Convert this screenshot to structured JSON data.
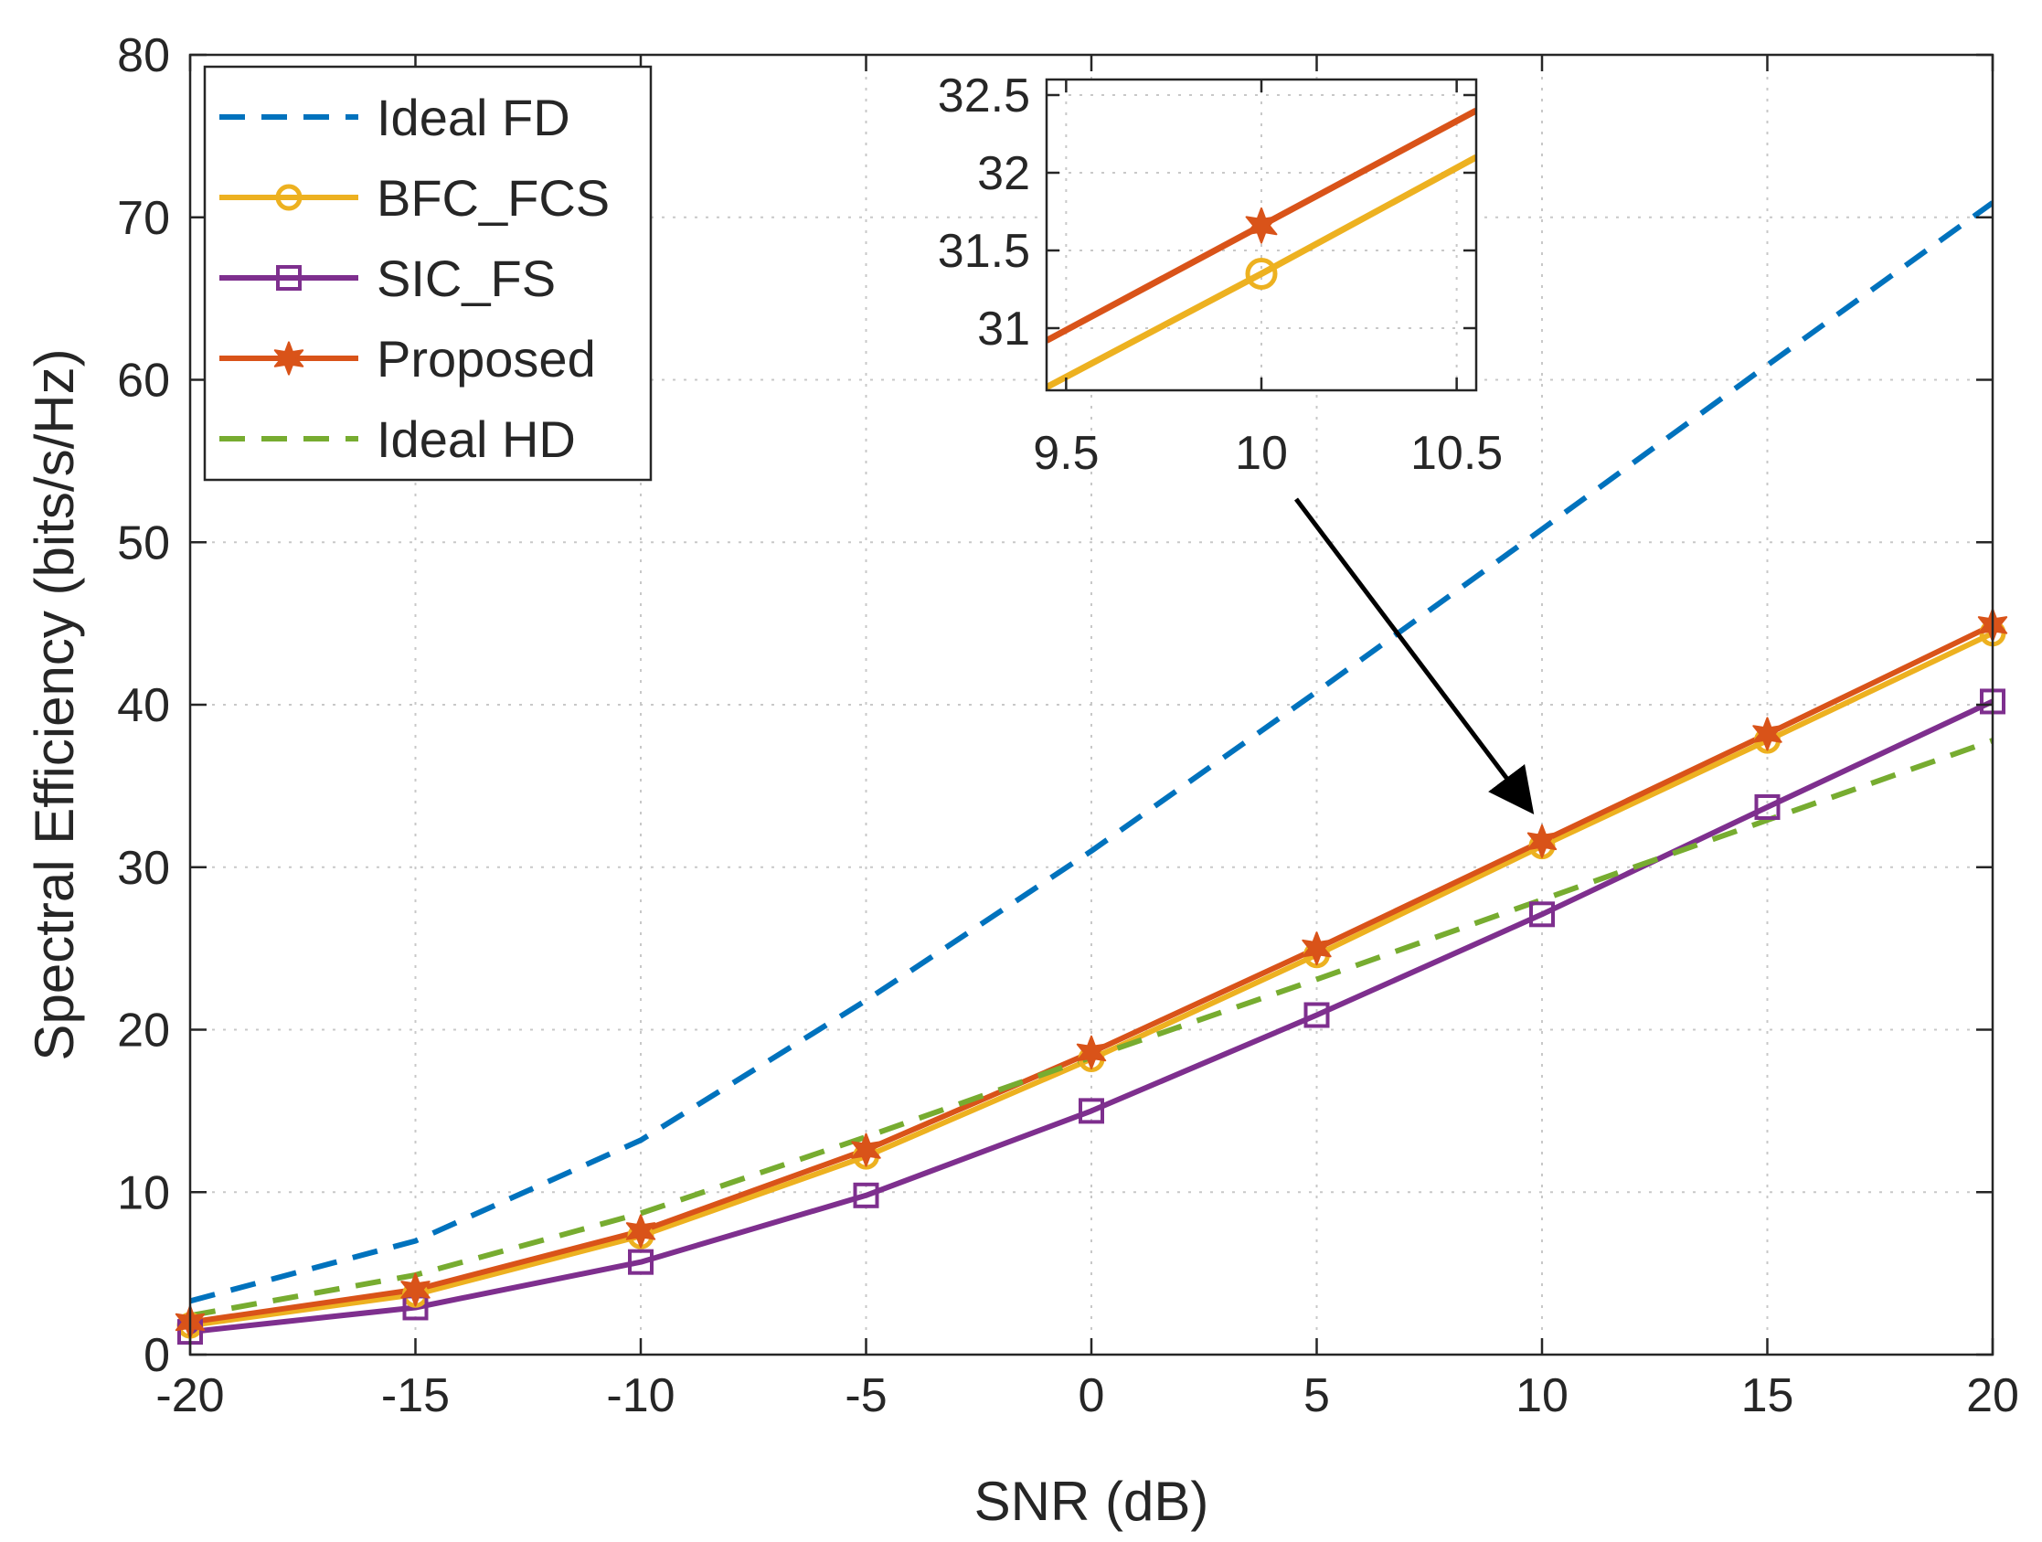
{
  "chart_data": {
    "type": "line",
    "title": "",
    "xlabel": "SNR (dB)",
    "ylabel": "Spectral Efficiency (bits/s/Hz)",
    "xlim": [
      -20,
      20
    ],
    "ylim": [
      0,
      80
    ],
    "x_ticks": [
      -20,
      -15,
      -10,
      -5,
      0,
      5,
      10,
      15,
      20
    ],
    "x_tick_labels": [
      "-20",
      "-15",
      "-10",
      "-5",
      "0",
      "5",
      "10",
      "15",
      "20"
    ],
    "y_ticks": [
      0,
      10,
      20,
      30,
      40,
      50,
      60,
      70,
      80
    ],
    "y_tick_labels": [
      "0",
      "10",
      "20",
      "30",
      "40",
      "50",
      "60",
      "70",
      "80"
    ],
    "grid": true,
    "legend_position": "top-left",
    "x": [
      -20,
      -15,
      -10,
      -5,
      0,
      5,
      10,
      15,
      20
    ],
    "series": [
      {
        "name": "Ideal FD",
        "color": "#0072BD",
        "style": "dashed",
        "marker": "none",
        "values": [
          3.3,
          7.0,
          13.2,
          21.8,
          31.0,
          40.8,
          50.8,
          60.9,
          70.9
        ]
      },
      {
        "name": "BFC_FCS",
        "color": "#EDB120",
        "style": "solid",
        "marker": "circle",
        "values": [
          1.8,
          3.7,
          7.3,
          12.2,
          18.2,
          24.6,
          31.3,
          37.8,
          44.4
        ]
      },
      {
        "name": "SIC_FS",
        "color": "#7E2F8E",
        "style": "solid",
        "marker": "square",
        "values": [
          1.4,
          2.9,
          5.7,
          9.8,
          15.0,
          20.9,
          27.1,
          33.7,
          40.2
        ]
      },
      {
        "name": "Proposed",
        "color": "#D95319",
        "style": "solid",
        "marker": "star",
        "values": [
          2.0,
          4.0,
          7.6,
          12.6,
          18.6,
          25.0,
          31.6,
          38.2,
          44.9
        ]
      },
      {
        "name": "Ideal HD",
        "color": "#77AC30",
        "style": "dashed",
        "marker": "none",
        "values": [
          2.4,
          4.9,
          8.7,
          13.4,
          18.3,
          23.1,
          28.0,
          32.9,
          37.8
        ]
      }
    ],
    "inset": {
      "xlim": [
        9.45,
        10.55
      ],
      "ylim": [
        30.6,
        32.6
      ],
      "x_ticks": [
        9.5,
        10,
        10.5
      ],
      "x_tick_labels": [
        "9.5",
        "10",
        "10.5"
      ],
      "y_ticks": [
        31,
        31.5,
        32,
        32.5
      ],
      "y_tick_labels": [
        "31",
        "31.5",
        "32",
        "32.5"
      ],
      "series": [
        {
          "name": "BFC_FCS",
          "color": "#EDB120",
          "marker": "circle",
          "points": [
            [
              9.45,
              30.62
            ],
            [
              10,
              31.35
            ],
            [
              10.55,
              32.1
            ]
          ]
        },
        {
          "name": "Proposed",
          "color": "#D95319",
          "marker": "star",
          "points": [
            [
              9.45,
              30.92
            ],
            [
              10,
              31.66
            ],
            [
              10.55,
              32.4
            ]
          ]
        }
      ]
    },
    "annotations": [
      {
        "type": "arrow",
        "from": "inset",
        "to_x": 9.7,
        "to_y": 33.7
      }
    ]
  }
}
